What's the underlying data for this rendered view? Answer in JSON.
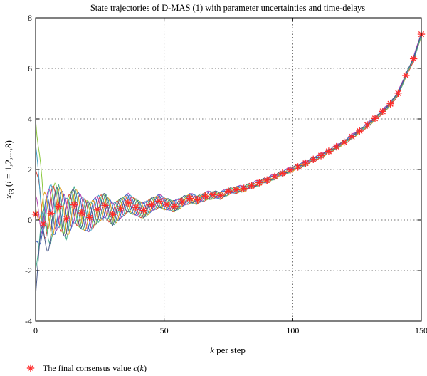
{
  "chart_data": {
    "type": "line",
    "title": "State trajectories of D-MAS (1) with parameter uncertainties and time-delays",
    "xlabel": "k per step",
    "ylabel": "x_i3 (i = 1,2,...,8)",
    "xlim": [
      0,
      150
    ],
    "ylim": [
      -4,
      8
    ],
    "xticks": [
      "0",
      "50",
      "100",
      "150"
    ],
    "yticks": [
      "-4",
      "-2",
      "0",
      "2",
      "4",
      "6",
      "8"
    ],
    "grid": true,
    "legend": {
      "placement": "bottom-left",
      "entries": [
        {
          "marker": "asterisk",
          "text": "The  final consensus value  c(k)"
        }
      ]
    },
    "agents": [
      {
        "color": "#8ac83c",
        "initial": 4.0,
        "phase": 0.2
      },
      {
        "color": "#d8483c",
        "initial": 2.0,
        "phase": 1.0
      },
      {
        "color": "#40a0c8",
        "initial": 3.0,
        "phase": 1.9
      },
      {
        "color": "#b040b0",
        "initial": 1.0,
        "phase": 2.7
      },
      {
        "color": "#3a60c0",
        "initial": -0.9,
        "phase": 3.5
      },
      {
        "color": "#e0a020",
        "initial": 0.5,
        "phase": 4.3
      },
      {
        "color": "#48b090",
        "initial": -2.0,
        "phase": 5.1
      },
      {
        "color": "#4a5a8a",
        "initial": -3.0,
        "phase": 5.9
      }
    ],
    "consensus": {
      "color": "#ff2a2a",
      "marker": "asterisk",
      "x": [
        0,
        3,
        6,
        9,
        12,
        15,
        18,
        21,
        24,
        27,
        30,
        33,
        36,
        39,
        42,
        45,
        48,
        51,
        54,
        57,
        60,
        63,
        66,
        69,
        72,
        75,
        78,
        81,
        84,
        87,
        90,
        93,
        96,
        99,
        102,
        105,
        108,
        111,
        114,
        117,
        120,
        123,
        126,
        129,
        132,
        135,
        138,
        141,
        144,
        147,
        150
      ],
      "y": [
        0.23,
        -0.15,
        0.26,
        0.55,
        0.05,
        0.6,
        0.28,
        0.1,
        0.42,
        0.58,
        0.22,
        0.45,
        0.68,
        0.5,
        0.38,
        0.6,
        0.75,
        0.62,
        0.55,
        0.72,
        0.86,
        0.8,
        0.95,
        1.0,
        0.98,
        1.14,
        1.2,
        1.25,
        1.36,
        1.48,
        1.58,
        1.72,
        1.85,
        1.98,
        2.1,
        2.25,
        2.4,
        2.55,
        2.72,
        2.9,
        3.08,
        3.3,
        3.52,
        3.76,
        4.02,
        4.3,
        4.6,
        5.02,
        5.72,
        6.38,
        7.35
      ]
    }
  }
}
